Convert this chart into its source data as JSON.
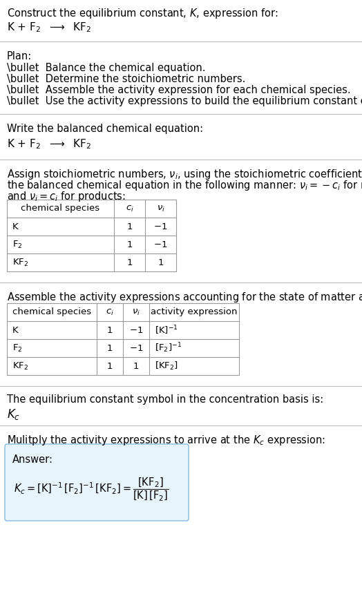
{
  "bg_color": "#ffffff",
  "text_color": "#000000",
  "gray_text_color": "#555555",
  "section_divider_color": "#bbbbbb",
  "table_border_color": "#999999",
  "answer_box_color": "#e8f4fb",
  "answer_box_border": "#88bbdd",
  "title_line1": "Construct the equilibrium constant, $K$, expression for:",
  "title_line2": "K + F$_2$  $\\longrightarrow$  KF$_2$",
  "plan_header": "Plan:",
  "plan_items": [
    "\\bullet  Balance the chemical equation.",
    "\\bullet  Determine the stoichiometric numbers.",
    "\\bullet  Assemble the activity expression for each chemical species.",
    "\\bullet  Use the activity expressions to build the equilibrium constant expression."
  ],
  "balanced_header": "Write the balanced chemical equation:",
  "balanced_eq": "K + F$_2$  $\\longrightarrow$  KF$_2$",
  "stoich_text_line1": "Assign stoichiometric numbers, $\\nu_i$, using the stoichiometric coefficients, $c_i$, from",
  "stoich_text_line2": "the balanced chemical equation in the following manner: $\\nu_i = -c_i$ for reactants",
  "stoich_text_line3": "and $\\nu_i = c_i$ for products:",
  "table1_headers": [
    "chemical species",
    "$c_i$",
    "$\\nu_i$"
  ],
  "table1_rows": [
    [
      "K",
      "1",
      "$-1$"
    ],
    [
      "F$_2$",
      "1",
      "$-1$"
    ],
    [
      "KF$_2$",
      "1",
      "$1$"
    ]
  ],
  "activity_header": "Assemble the activity expressions accounting for the state of matter and $\\nu_i$:",
  "table2_headers": [
    "chemical species",
    "$c_i$",
    "$\\nu_i$",
    "activity expression"
  ],
  "table2_rows": [
    [
      "K",
      "1",
      "$-1$",
      "$[\\mathrm{K}]^{-1}$"
    ],
    [
      "F$_2$",
      "1",
      "$-1$",
      "$[\\mathrm{F_2}]^{-1}$"
    ],
    [
      "KF$_2$",
      "1",
      "$1$",
      "$[\\mathrm{KF_2}]$"
    ]
  ],
  "kc_header": "The equilibrium constant symbol in the concentration basis is:",
  "kc_symbol": "$K_c$",
  "multiply_header": "Mulitply the activity expressions to arrive at the $K_c$ expression:",
  "answer_label": "Answer:",
  "answer_eq1": "$K_c = [\\mathrm{K}]^{-1}\\,[\\mathrm{F_2}]^{-1}\\,[\\mathrm{KF_2}] = \\dfrac{[\\mathrm{KF_2}]}{[\\mathrm{K}]\\,[\\mathrm{F_2}]}$"
}
